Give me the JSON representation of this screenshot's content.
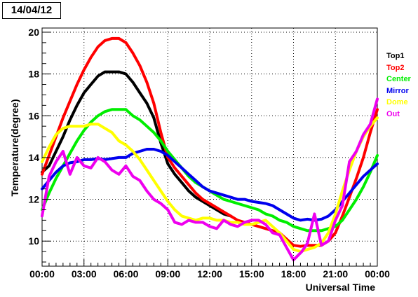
{
  "title": "14/04/12",
  "chart_data": {
    "type": "line",
    "xlabel": "Universal Time",
    "ylabel": "Temperature(degree)",
    "xlim": [
      0,
      24
    ],
    "ylim": [
      8.8,
      20.2
    ],
    "x_ticks": [
      {
        "value": 0,
        "label": "00:00"
      },
      {
        "value": 3,
        "label": "03:00"
      },
      {
        "value": 6,
        "label": "06:00"
      },
      {
        "value": 9,
        "label": "09:00"
      },
      {
        "value": 12,
        "label": "12:00"
      },
      {
        "value": 15,
        "label": "15:00"
      },
      {
        "value": 18,
        "label": "18:00"
      },
      {
        "value": 21,
        "label": "21:00"
      },
      {
        "value": 24,
        "label": "00:00"
      }
    ],
    "y_ticks": [
      10,
      12,
      14,
      16,
      18,
      20
    ],
    "grid": true,
    "legend_position": "right",
    "series": [
      {
        "name": "Top1",
        "color": "#000000",
        "x": [
          0,
          0.5,
          1,
          1.5,
          2,
          2.5,
          3,
          3.5,
          4,
          4.5,
          5,
          5.5,
          6,
          6.5,
          7,
          7.5,
          8,
          8.5,
          9,
          9.5,
          10,
          10.5,
          11,
          11.5,
          12,
          12.5,
          13,
          13.5
        ],
        "y": [
          13.3,
          13.6,
          14.3,
          15.0,
          15.8,
          16.5,
          17.1,
          17.5,
          17.9,
          18.1,
          18.1,
          18.1,
          18.0,
          17.6,
          17.1,
          16.6,
          15.9,
          14.7,
          13.7,
          13.2,
          12.8,
          12.4,
          12.1,
          11.9,
          11.7,
          11.5,
          11.3,
          11.2
        ]
      },
      {
        "name": "Top2",
        "color": "#ff0000",
        "x": [
          0,
          0.5,
          1,
          1.5,
          2,
          2.5,
          3,
          3.5,
          4,
          4.5,
          5,
          5.5,
          6,
          6.5,
          7,
          7.5,
          8,
          8.5,
          9,
          9.5,
          10,
          10.5,
          11,
          11.5,
          12,
          12.5,
          13,
          13.5,
          14,
          14.5,
          15,
          15.5,
          16,
          16.5,
          17,
          17.5,
          18,
          18.5,
          19,
          19.5,
          20,
          20.5,
          21,
          21.5,
          22,
          22.5,
          23,
          23.5,
          24
        ],
        "y": [
          13.2,
          14.1,
          15.0,
          15.9,
          16.7,
          17.5,
          18.2,
          18.8,
          19.3,
          19.6,
          19.7,
          19.7,
          19.5,
          19.0,
          18.4,
          17.6,
          16.6,
          15.2,
          14.0,
          13.5,
          13.1,
          12.7,
          12.3,
          12.0,
          11.8,
          11.6,
          11.4,
          11.2,
          11.0,
          10.9,
          10.8,
          10.7,
          10.6,
          10.5,
          10.4,
          10.1,
          9.8,
          9.75,
          9.8,
          9.8,
          9.8,
          10.0,
          10.4,
          11.2,
          12.1,
          13.0,
          14.0,
          15.2,
          16.3
        ]
      },
      {
        "name": "Center",
        "color": "#00ee00",
        "x": [
          0,
          0.5,
          1,
          1.5,
          2,
          2.5,
          3,
          3.5,
          4,
          4.5,
          5,
          5.5,
          6,
          6.5,
          7,
          7.5,
          8,
          8.5,
          9,
          9.5,
          10,
          10.5,
          11,
          11.5,
          12,
          12.5,
          13,
          13.5,
          14,
          14.5,
          15,
          15.5,
          16,
          16.5,
          17,
          17.5,
          18,
          18.5,
          19,
          19.5,
          20,
          20.5,
          21,
          21.5,
          22,
          22.5,
          23,
          23.5,
          24
        ],
        "y": [
          11.5,
          12.3,
          13.0,
          13.6,
          14.2,
          14.8,
          15.3,
          15.7,
          16.0,
          16.2,
          16.3,
          16.3,
          16.3,
          16.0,
          15.8,
          15.5,
          15.2,
          14.8,
          14.3,
          13.9,
          13.5,
          13.1,
          12.8,
          12.6,
          12.4,
          12.2,
          12.0,
          11.9,
          11.8,
          11.7,
          11.6,
          11.5,
          11.3,
          11.2,
          11.0,
          10.9,
          10.7,
          10.6,
          10.5,
          10.5,
          10.5,
          10.6,
          10.7,
          11.0,
          11.5,
          12.0,
          12.6,
          13.3,
          14.1
        ]
      },
      {
        "name": "Mirror",
        "color": "#0000ee",
        "x": [
          0,
          0.5,
          1,
          1.5,
          2,
          2.5,
          3,
          3.5,
          4,
          4.5,
          5,
          5.5,
          6,
          6.5,
          7,
          7.5,
          8,
          8.5,
          9,
          9.5,
          10,
          10.5,
          11,
          11.5,
          12,
          12.5,
          13,
          13.5,
          14,
          14.5,
          15,
          15.5,
          16,
          16.5,
          17,
          17.5,
          18,
          18.5,
          19,
          19.5,
          20,
          20.5,
          21,
          21.5,
          22,
          22.5,
          23,
          23.5,
          24
        ],
        "y": [
          12.5,
          12.9,
          13.3,
          13.6,
          13.75,
          13.8,
          13.9,
          13.9,
          13.95,
          13.9,
          13.95,
          14.0,
          14.0,
          14.2,
          14.3,
          14.4,
          14.4,
          14.3,
          14.1,
          13.8,
          13.5,
          13.2,
          12.9,
          12.6,
          12.4,
          12.3,
          12.2,
          12.1,
          12.0,
          12.0,
          11.9,
          11.85,
          11.8,
          11.7,
          11.5,
          11.3,
          11.1,
          11.0,
          11.05,
          11.0,
          11.05,
          11.2,
          11.5,
          11.9,
          12.3,
          12.7,
          13.1,
          13.4,
          13.7
        ]
      },
      {
        "name": "Dome",
        "color": "#ffff00",
        "x": [
          0,
          0.5,
          1,
          1.5,
          2,
          2.5,
          3,
          3.5,
          4,
          4.5,
          5,
          5.5,
          6,
          6.5,
          7,
          7.5,
          8,
          8.5,
          9,
          9.5,
          10,
          10.5,
          11,
          11.5,
          12,
          12.5,
          13,
          13.5,
          14,
          14.5,
          15,
          15.5,
          16,
          16.5,
          17,
          17.5,
          18,
          18.5,
          19,
          19.5,
          20,
          20.5,
          21,
          21.5,
          22,
          22.5,
          23,
          23.5,
          24
        ],
        "y": [
          13.8,
          14.5,
          15.1,
          15.4,
          15.5,
          15.5,
          15.5,
          15.6,
          15.6,
          15.4,
          15.2,
          14.8,
          14.6,
          14.3,
          13.9,
          13.4,
          12.9,
          12.4,
          11.9,
          11.5,
          11.2,
          11.1,
          11.0,
          11.1,
          11.1,
          11.0,
          11.0,
          10.9,
          10.9,
          10.8,
          10.8,
          10.9,
          11.0,
          10.7,
          10.4,
          10.0,
          9.6,
          9.5,
          9.6,
          9.7,
          9.9,
          10.4,
          11.3,
          12.4,
          13.4,
          14.3,
          15.0,
          15.5,
          15.9
        ]
      },
      {
        "name": "Out",
        "color": "#ee00ee",
        "x": [
          0,
          0.5,
          1,
          1.5,
          2,
          2.5,
          3,
          3.5,
          4,
          4.5,
          5,
          5.5,
          6,
          6.5,
          7,
          7.5,
          8,
          8.5,
          9,
          9.5,
          10,
          10.5,
          11,
          11.5,
          12,
          12.5,
          13,
          13.5,
          14,
          14.5,
          15,
          15.5,
          16,
          16.5,
          17,
          17.5,
          18,
          18.3,
          18.6,
          19,
          19.5,
          20,
          20.5,
          21,
          21.5,
          22,
          22.5,
          23,
          23.5,
          24
        ],
        "y": [
          11.2,
          13.1,
          13.8,
          14.3,
          13.2,
          14.0,
          13.6,
          13.5,
          14.0,
          13.8,
          13.4,
          13.2,
          13.6,
          13.1,
          12.9,
          12.4,
          12.0,
          11.8,
          11.5,
          10.9,
          10.8,
          11.0,
          10.9,
          10.9,
          10.7,
          10.6,
          11.0,
          10.8,
          10.7,
          10.9,
          11.0,
          11.0,
          10.8,
          10.4,
          10.3,
          9.7,
          9.1,
          9.3,
          9.5,
          9.9,
          11.3,
          9.8,
          10.0,
          11.0,
          11.7,
          13.8,
          14.3,
          15.1,
          15.6,
          16.8
        ]
      }
    ]
  }
}
